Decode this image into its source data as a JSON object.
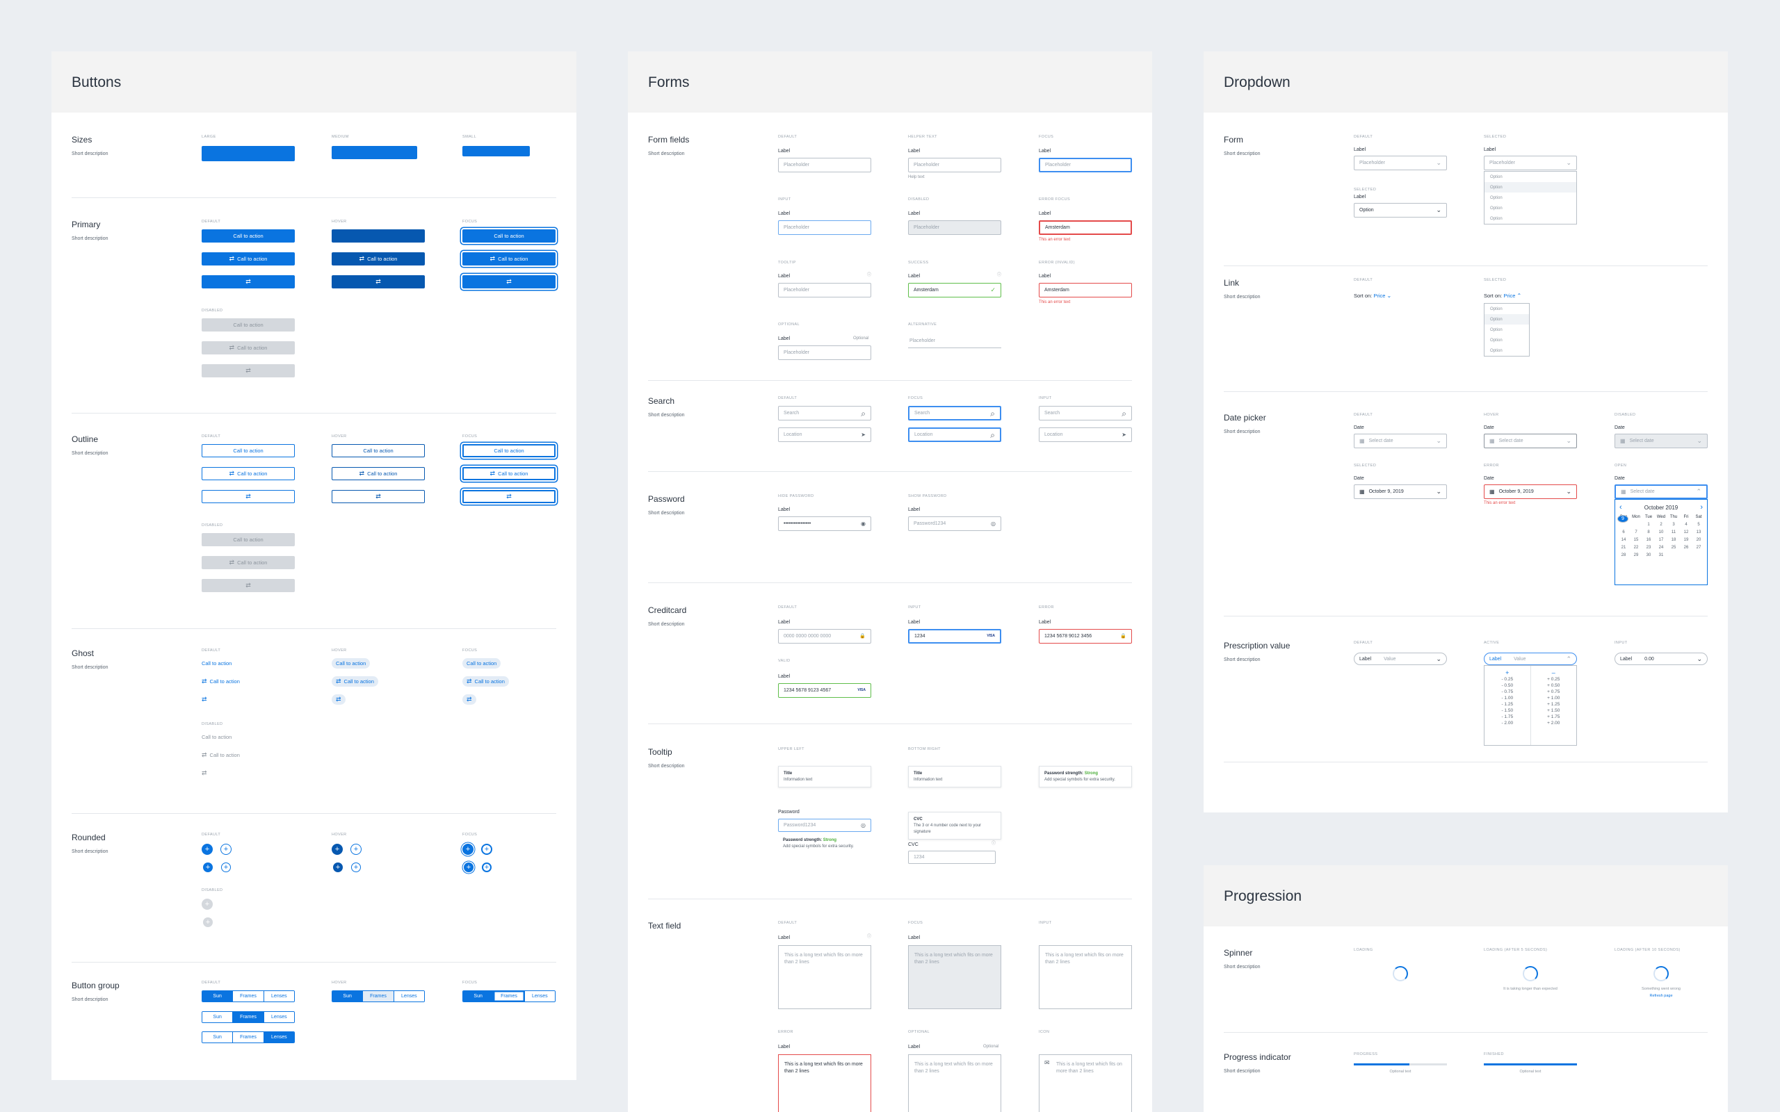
{
  "icons": {
    "swap": "⇄",
    "search": "⌕",
    "locate": "➤",
    "eye": "◉",
    "eye_off": "◎",
    "lock": "🔒",
    "visa": "VISA",
    "check": "✓",
    "info": "ⓘ",
    "chevron_down": "⌄",
    "chevron_up": "⌃",
    "calendar": "▦",
    "plus": "+",
    "minus": "–",
    "mail": "✉",
    "prev": "‹",
    "next": "›"
  },
  "colors": {
    "primary": "#0a74e0",
    "primary_hover": "#0658b0",
    "error": "#e44a4a",
    "success": "#5fbe4a",
    "disabled": "#d4d8dd"
  },
  "common": {
    "cta": "Call to action",
    "short_desc": "Short description",
    "label": "Label",
    "placeholder": "Placeholder",
    "option": "Option"
  },
  "buttons": {
    "title": "Buttons",
    "sizes": {
      "title": "Sizes",
      "large": "LARGE",
      "medium": "MEDIUM",
      "small": "SMALL"
    },
    "states": {
      "default": "DEFAULT",
      "hover": "HOVER",
      "focus": "FOCUS",
      "disabled": "DISABLED"
    },
    "primary": {
      "title": "Primary"
    },
    "outline": {
      "title": "Outline"
    },
    "ghost": {
      "title": "Ghost"
    },
    "rounded": {
      "title": "Rounded"
    },
    "group": {
      "title": "Button group",
      "items": [
        "Sun",
        "Frames",
        "Lenses"
      ]
    }
  },
  "forms": {
    "title": "Forms",
    "fields": {
      "title": "Form fields",
      "default": "DEFAULT",
      "helper": "HELPER TEXT",
      "focus": "FOCUS",
      "input": "INPUT",
      "disabled": "DISABLED",
      "error_focus": "ERROR FOCUS",
      "tooltip": "TOOLTIP",
      "success": "SUCCESS",
      "error_invalid": "ERROR (INVALID)",
      "optional": "OPTIONAL",
      "alternative": "ALTERNATIVE",
      "help_text": "Help text",
      "error_text": "This an error text",
      "amsterdam": "Amsterdam",
      "optional_lbl": "Optional"
    },
    "search": {
      "title": "Search",
      "default": "DEFAULT",
      "focus": "FOCUS",
      "input": "INPUT",
      "search_ph": "Search",
      "location_ph": "Location"
    },
    "password": {
      "title": "Password",
      "hide": "HIDE PASSWORD",
      "show": "SHOW PASSWORD",
      "masked": "••••••••••••••••",
      "shown": "Password1234"
    },
    "creditcard": {
      "title": "Creditcard",
      "default": "DEFAULT",
      "input": "INPUT",
      "error": "ERROR",
      "valid": "VALID",
      "ph": "0000 0000 0000 0000",
      "partial": "1234",
      "full": "1234 5678 9012 3456",
      "valid_val": "1234 5678 9123 4567"
    },
    "tooltip": {
      "title": "Tooltip",
      "upper_left": "UPPER LEFT",
      "bottom_right": "BOTTOM RIGHT",
      "t_title": "Title",
      "t_info": "Information text",
      "strength": "Password strength:",
      "strong": "Strong",
      "symbols": "Add special symbols for extra security.",
      "password": "Password",
      "pwd_val": "Password1234",
      "cvc": "CVC",
      "cvc_text": "The 3 or 4 number code next to your signature",
      "cvc_ph": "1234"
    },
    "textfield": {
      "title": "Text field",
      "default": "DEFAULT",
      "focus": "FOCUS",
      "input": "INPUT",
      "error": "ERROR",
      "optional": "OPTIONAL",
      "icon": "ICON",
      "long": "This is a long text which fits on more than 2 lines",
      "optional_lbl": "Optional"
    }
  },
  "dropdown": {
    "title": "Dropdown",
    "form": {
      "title": "Form",
      "default": "DEFAULT",
      "selected": "SELECTED"
    },
    "link": {
      "title": "Link",
      "default": "DEFAULT",
      "selected": "SELECTED",
      "sort_on": "Sort on:",
      "price": "Price"
    },
    "datepicker": {
      "title": "Date picker",
      "default": "DEFAULT",
      "hover": "HOVER",
      "disabled": "DISABLED",
      "selected": "SELECTED",
      "error": "ERROR",
      "open": "OPEN",
      "date": "Date",
      "select_date": "Select date",
      "chosen": "October 9, 2019",
      "error_text": "This an error text",
      "month": "October 2019",
      "weekdays": [
        "Sun",
        "Mon",
        "Tue",
        "Wed",
        "Thu",
        "Fri",
        "Sat"
      ],
      "days": [
        "",
        "",
        "1",
        "2",
        "3",
        "4",
        "5",
        "6",
        "7",
        "8",
        "9",
        "10",
        "11",
        "12",
        "13",
        "14",
        "15",
        "16",
        "17",
        "18",
        "19",
        "20",
        "21",
        "22",
        "23",
        "24",
        "25",
        "26",
        "27",
        "28",
        "29",
        "30",
        "31"
      ]
    },
    "prescription": {
      "title": "Prescription value",
      "default": "DEFAULT",
      "active": "ACTIVE",
      "input": "INPUT",
      "value": "Value",
      "input_val": "0.00",
      "minus": [
        "- 0.25",
        "- 0.50",
        "- 0.75",
        "- 1.00",
        "- 1.25",
        "- 1.50",
        "- 1.75",
        "- 2.00"
      ],
      "plus": [
        "+ 0.25",
        "+ 0.50",
        "+ 0.75",
        "+ 1.00",
        "+ 1.25",
        "+ 1.50",
        "+ 1.75",
        "+ 2.00"
      ]
    }
  },
  "progression": {
    "title": "Progression",
    "spinner": {
      "title": "Spinner",
      "loading": "LOADING",
      "after5": "LOADING (AFTER 5 SECONDS)",
      "after10": "LOADING (AFTER 10 SECONDS)",
      "longer": "It is taking longer than expected",
      "wrong": "Something went wrong",
      "refresh": "Refresh page"
    },
    "indicator": {
      "title": "Progress indicator",
      "progress": "PROGRESS",
      "finished": "FINISHED",
      "optional": "Optional text",
      "progress_pct": 60,
      "finished_pct": 100
    }
  }
}
